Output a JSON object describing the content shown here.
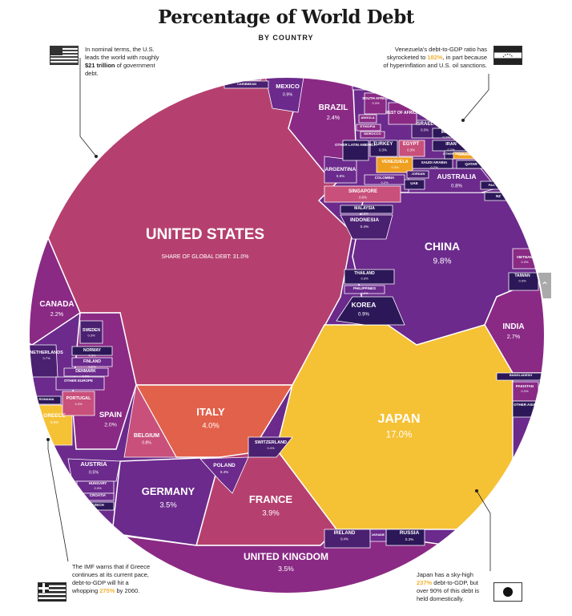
{
  "title": "Percentage of World Debt",
  "subtitle": "BY COUNTRY",
  "notes": {
    "us": {
      "a": "In nominal terms, the U.S. leads the world with roughly ",
      "b": "$21 trillion",
      "c": " of government debt."
    },
    "venezuela": {
      "a": "Venezuela's debt-to-GDP ratio has skyrocketed to ",
      "b": "182%",
      "c": ", in part because of hyperinflation and U.S. oil sanctions."
    },
    "greece": {
      "a": "The IMF warns that if Greece continues at its current pace, debt-to-GDP will hit a whopping ",
      "b": "275%",
      "c": " by 2060."
    },
    "japan": {
      "a": "Japan has a sky-high ",
      "b": "237%",
      "c": " debt-to-GDP, but over 90% of this debt is held domestically."
    }
  },
  "colors": {
    "magenta": "#b5406f",
    "purple": "#8a2a85",
    "violet": "#6b2a8c",
    "deep": "#4a2070",
    "navy": "#2c1858",
    "orange": "#e2614a",
    "yellow": "#f5c135",
    "pink": "#c8507a",
    "gold": "#f0a020",
    "white": "#ffffff"
  },
  "chart_data": {
    "type": "voronoi treemap",
    "title": "Percentage of World Debt",
    "subtitle": "BY COUNTRY",
    "unit": "%",
    "cells": [
      {
        "name": "UNITED STATES",
        "value": 31.0,
        "display": "SHARE OF GLOBAL DEBT: 31.0%"
      },
      {
        "name": "JAPAN",
        "value": 17.0,
        "display": "17.0%"
      },
      {
        "name": "CHINA",
        "value": 9.8,
        "display": "9.8%"
      },
      {
        "name": "ITALY",
        "value": 4.0,
        "display": "4.0%"
      },
      {
        "name": "FRANCE",
        "value": 3.9,
        "display": "3.9%"
      },
      {
        "name": "GERMANY",
        "value": 3.5,
        "display": "3.5%"
      },
      {
        "name": "UNITED KINGDOM",
        "value": 3.5,
        "display": "3.5%"
      },
      {
        "name": "INDIA",
        "value": 2.7,
        "display": "2.7%"
      },
      {
        "name": "BRAZIL",
        "value": 2.4,
        "display": "2.4%"
      },
      {
        "name": "CANADA",
        "value": 2.2,
        "display": "2.2%"
      },
      {
        "name": "SPAIN",
        "value": 2.0,
        "display": "2.0%"
      },
      {
        "name": "KOREA",
        "value": 0.9,
        "display": "0.9%"
      },
      {
        "name": "MEXICO",
        "value": 0.9,
        "display": "0.9%"
      },
      {
        "name": "AUSTRALIA",
        "value": 0.8,
        "display": "0.8%"
      },
      {
        "name": "BELGIUM",
        "value": 0.8,
        "display": "0.8%"
      },
      {
        "name": "NETHERLANDS",
        "value": 0.7,
        "display": "0.7%"
      },
      {
        "name": "ARGENTINA",
        "value": 0.6,
        "display": "0.6%"
      },
      {
        "name": "SINGAPORE",
        "value": 0.6,
        "display": "0.6%"
      },
      {
        "name": "AUSTRIA",
        "value": 0.5,
        "display": "0.5%"
      },
      {
        "name": "GREECE",
        "value": 0.5,
        "display": "0.5%"
      },
      {
        "name": "INDONESIA",
        "value": 0.4,
        "display": "0.4%"
      },
      {
        "name": "POLAND",
        "value": 0.4,
        "display": "0.4%"
      },
      {
        "name": "SWITZERLAND",
        "value": 0.4,
        "display": "0.4%"
      },
      {
        "name": "IRELAND",
        "value": 0.4,
        "display": "0.4%"
      },
      {
        "name": "PORTUGAL",
        "value": 0.4,
        "display": "0.4%"
      },
      {
        "name": "SWEDEN",
        "value": 0.3,
        "display": "0.3%"
      },
      {
        "name": "NORWAY",
        "value": 0.3,
        "display": "0.3%"
      },
      {
        "name": "THAILAND",
        "value": 0.3,
        "display": "0.3%"
      },
      {
        "name": "MALAYSIA",
        "value": 0.3,
        "display": "0.3%"
      },
      {
        "name": "TURKEY",
        "value": 0.3,
        "display": "0.3%"
      },
      {
        "name": "EGYPT",
        "value": 0.3,
        "display": "0.3%"
      },
      {
        "name": "ISRAEL",
        "value": 0.3,
        "display": "0.3%"
      },
      {
        "name": "RUSSIA",
        "value": 0.3,
        "display": "0.3%"
      },
      {
        "name": "HUNGARY",
        "value": 0.3,
        "display": "0.3%"
      },
      {
        "name": "VENEZUELA",
        "value": 0.3,
        "display": "0.3%"
      },
      {
        "name": "SOUTH AFRICA",
        "value": 0.3,
        "display": "0.3%"
      },
      {
        "name": "VIETNAM",
        "value": 0.3,
        "display": "0.3%"
      },
      {
        "name": "TAIWAN",
        "value": 0.3,
        "display": "0.3%"
      },
      {
        "name": "PAKISTAN",
        "value": 0.3,
        "display": "0.3%"
      },
      {
        "name": "FINLAND",
        "value": 0.2,
        "display": "0.2%"
      },
      {
        "name": "DENMARK",
        "value": 0.2,
        "display": "0.2%"
      },
      {
        "name": "PHILIPPINES",
        "value": 0.2,
        "display": "0.2%"
      },
      {
        "name": "COLOMBIA",
        "value": 0.2,
        "display": "0.2%"
      },
      {
        "name": "IRAN",
        "value": 0.2,
        "display": "0.2%"
      },
      {
        "name": "IRAQ",
        "value": 0.2,
        "display": "0.2%"
      },
      {
        "name": "SAUDI ARABIA",
        "value": 0.2,
        "display": "0.2%"
      },
      {
        "name": "NIGERIA",
        "value": 0.2,
        "display": "0.2%"
      },
      {
        "name": "REST OF AFRICA",
        "value": null,
        "display": ""
      },
      {
        "name": "OTHER LATIN AMERICA",
        "value": null,
        "display": ""
      },
      {
        "name": "OTHER EUROPE",
        "value": null,
        "display": ""
      },
      {
        "name": "OTHER MIDDLE EAST",
        "value": null,
        "display": ""
      },
      {
        "name": "OTHER ASIA",
        "value": null,
        "display": ""
      },
      {
        "name": "PUERTO RICO",
        "value": null,
        "display": ""
      },
      {
        "name": "CARIBBEAN",
        "value": null,
        "display": ""
      },
      {
        "name": "ANGOLA",
        "value": null,
        "display": ""
      },
      {
        "name": "ETHIOPIA",
        "value": null,
        "display": ""
      },
      {
        "name": "MOROCCO",
        "value": null,
        "display": ""
      },
      {
        "name": "LEBANON",
        "value": null,
        "display": ""
      },
      {
        "name": "QATAR",
        "value": null,
        "display": ""
      },
      {
        "name": "JORDAN",
        "value": null,
        "display": ""
      },
      {
        "name": "UAE",
        "value": null,
        "display": ""
      },
      {
        "name": "PAC ISLES",
        "value": null,
        "display": ""
      },
      {
        "name": "NZ",
        "value": null,
        "display": ""
      },
      {
        "name": "BANGLADESH",
        "value": null,
        "display": ""
      },
      {
        "name": "ROMANIA",
        "value": null,
        "display": ""
      },
      {
        "name": "CROATIA",
        "value": null,
        "display": ""
      },
      {
        "name": "CZECH",
        "value": null,
        "display": ""
      },
      {
        "name": "UKRAINE",
        "value": null,
        "display": ""
      }
    ]
  }
}
